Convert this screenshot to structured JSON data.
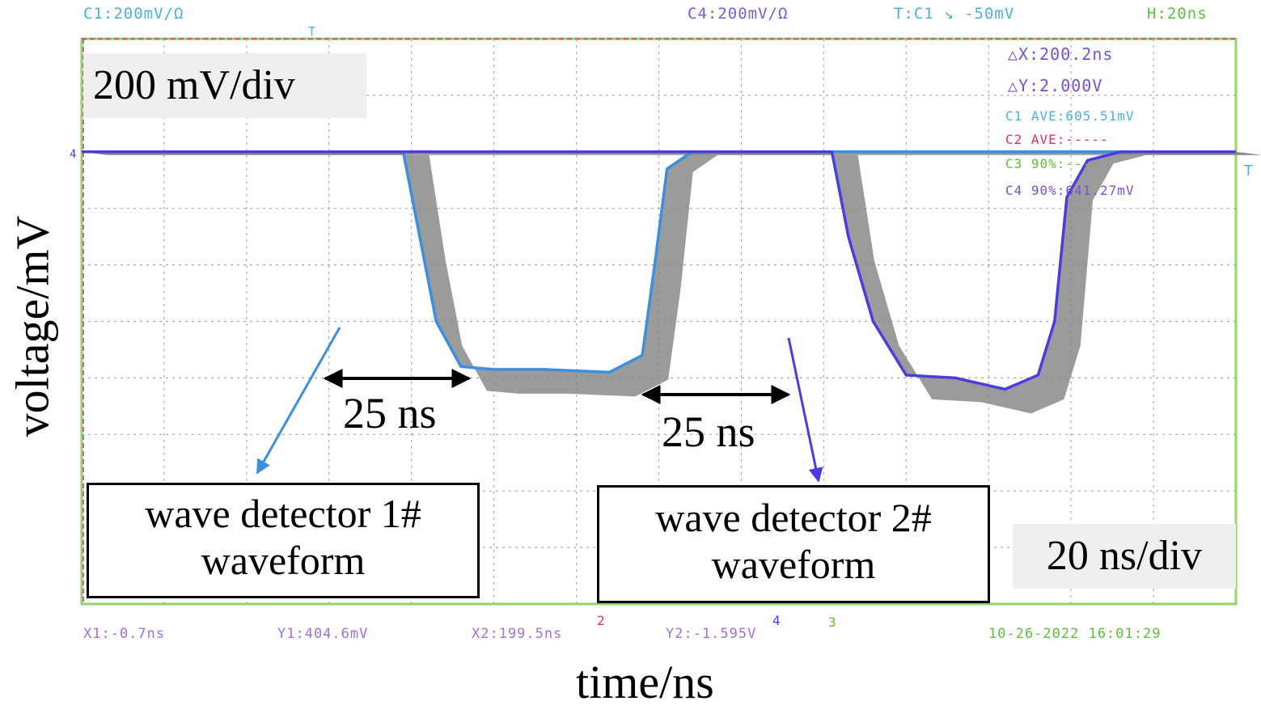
{
  "scope": {
    "top_left": "C1:200mV/Ω",
    "top_c4": "C4:200mV/Ω",
    "trigger": "T:C1 ↘ -50mV",
    "horizontal": "H:20ns",
    "bottom_x1": "X1:-0.7ns",
    "bottom_y1": "Y1:404.6mV",
    "bottom_x2": "X2:199.5ns",
    "bottom_y2": "Y2:-1.595V",
    "timestamp": "10-26-2022 16:01:29",
    "marker_2": "2",
    "marker_4": "4",
    "marker_3": "3",
    "marker_t_top": "T",
    "marker_t_right": "T",
    "marker_4_left": "4"
  },
  "measurements": {
    "delta_x": "△X:200.2ns",
    "delta_y": "△Y:2.000V",
    "c1_ave": "C1 AVE:605.51mV",
    "c2_ave": "C2 AVE:-----",
    "c3_90": "C3 90%:----",
    "c4_90": "C4 90%:641.27mV"
  },
  "annotations": {
    "vdiv": "200 mV/div",
    "tdiv": "20 ns/div",
    "pulse1_width": "25 ns",
    "pulse2_width": "25 ns",
    "detector1": "wave detector 1#\nwaveform",
    "detector2": "wave detector 2#\nwaveform"
  },
  "chart_data": {
    "type": "line",
    "xlabel": "time/ns",
    "ylabel": "voltage/mV",
    "x_per_div_ns": 20,
    "y_per_div_mV": 200,
    "grid": true,
    "xlim_div": [
      0,
      14
    ],
    "ylim_div": [
      -8,
      2
    ],
    "series": [
      {
        "name": "wave detector 1#",
        "color": "#3a8fe0",
        "x_div": [
          0,
          3.9,
          4.1,
          4.3,
          4.6,
          5.0,
          5.6,
          6.4,
          6.8,
          6.95,
          7.1,
          7.4,
          9.0,
          14
        ],
        "y_div": [
          0,
          0,
          -1.5,
          -3.0,
          -3.8,
          -3.85,
          -3.85,
          -3.9,
          -3.6,
          -2.0,
          -0.3,
          0,
          0,
          0
        ]
      },
      {
        "name": "wave detector 2#",
        "color": "#4a3ce0",
        "x_div": [
          0,
          6.0,
          9.1,
          9.3,
          9.6,
          10.0,
          10.6,
          11.2,
          11.6,
          11.8,
          11.95,
          12.2,
          12.6,
          14
        ],
        "y_div": [
          0,
          0,
          0,
          -1.5,
          -3.0,
          -3.95,
          -4.0,
          -4.2,
          -3.95,
          -3.0,
          -0.8,
          -0.15,
          0,
          0
        ]
      }
    ]
  },
  "colors": {
    "c1": "#3a8fe0",
    "c4": "#4a3ce0",
    "c2": "#e0306a",
    "c3": "#5fbf3a",
    "grid": "#a8a8a8",
    "frame": "#8ed66a"
  }
}
